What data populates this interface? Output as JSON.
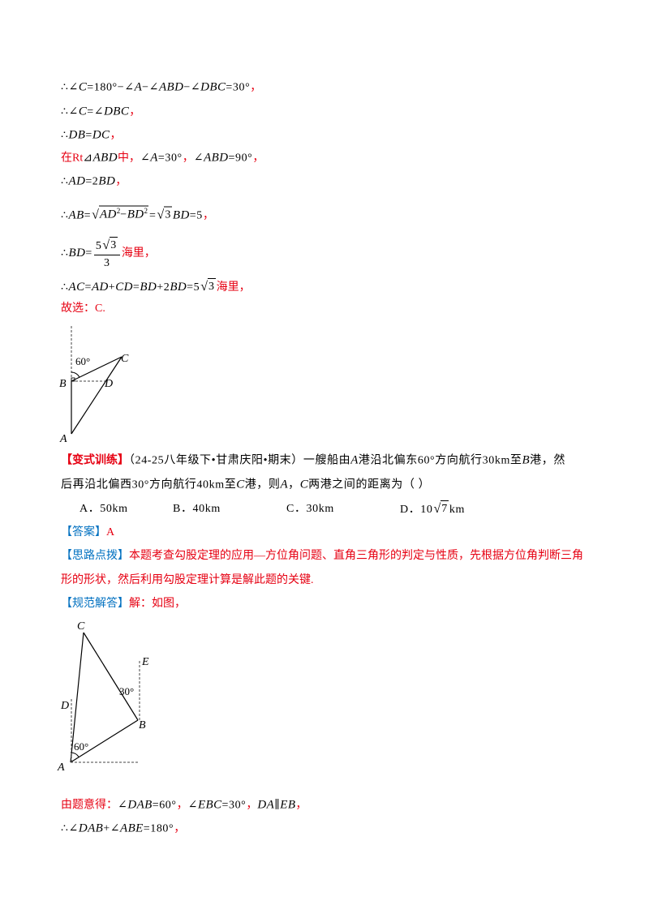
{
  "symbols": {
    "radical": "√"
  },
  "colors": {
    "red": "#e60012",
    "blue": "#0070c0"
  },
  "lines": [
    {
      "segs": [
        {
          "t": "∴∠",
          "s": "n"
        },
        {
          "t": "C",
          "s": "m"
        },
        {
          "t": "=180°−∠",
          "s": "n"
        },
        {
          "t": "A",
          "s": "m"
        },
        {
          "t": "−∠",
          "s": "n"
        },
        {
          "t": "ABD",
          "s": "m"
        },
        {
          "t": "−∠",
          "s": "n"
        },
        {
          "t": "DBC",
          "s": "m"
        },
        {
          "t": "=30°",
          "s": "n"
        },
        {
          "t": "，",
          "s": "r"
        }
      ]
    },
    {
      "segs": [
        {
          "t": "∴∠",
          "s": "n"
        },
        {
          "t": "C",
          "s": "m"
        },
        {
          "t": "=∠",
          "s": "n"
        },
        {
          "t": "DBC",
          "s": "m"
        },
        {
          "t": "，",
          "s": "r"
        }
      ]
    },
    {
      "segs": [
        {
          "t": "∴",
          "s": "n"
        },
        {
          "t": "DB",
          "s": "m"
        },
        {
          "t": "=",
          "s": "n"
        },
        {
          "t": "DC",
          "s": "m"
        },
        {
          "t": "，",
          "s": "r"
        }
      ]
    },
    {
      "segs": [
        {
          "t": "在Rt",
          "s": "r"
        },
        {
          "t": "⊿",
          "s": "n"
        },
        {
          "t": "ABD",
          "s": "m"
        },
        {
          "t": "中，",
          "s": "r"
        },
        {
          "t": "∠",
          "s": "n"
        },
        {
          "t": "A",
          "s": "m"
        },
        {
          "t": "=30°",
          "s": "n"
        },
        {
          "t": "，",
          "s": "r"
        },
        {
          "t": "∠",
          "s": "n"
        },
        {
          "t": "ABD",
          "s": "m"
        },
        {
          "t": "=90°",
          "s": "n"
        },
        {
          "t": "，",
          "s": "r"
        }
      ]
    },
    {
      "segs": [
        {
          "t": "∴",
          "s": "n"
        },
        {
          "t": "AD",
          "s": "m"
        },
        {
          "t": "=2",
          "s": "n"
        },
        {
          "t": "BD",
          "s": "m"
        },
        {
          "t": "，",
          "s": "r"
        }
      ]
    },
    {
      "segs": [
        {
          "t": "∴",
          "s": "n"
        },
        {
          "t": "AB",
          "s": "m"
        },
        {
          "t": "=",
          "s": "n"
        },
        {
          "sqrt": [
            {
              "t": "AD",
              "s": "m"
            },
            {
              "sup": "2"
            },
            {
              "t": "−",
              "s": "n"
            },
            {
              "t": "BD",
              "s": "m"
            },
            {
              "sup": "2"
            }
          ]
        },
        {
          "t": "=",
          "s": "n"
        },
        {
          "sqrt": [
            {
              "t": "3",
              "s": "n"
            }
          ]
        },
        {
          "t": "BD",
          "s": "m"
        },
        {
          "t": "=5",
          "s": "n"
        },
        {
          "t": "，",
          "s": "r"
        }
      ]
    },
    {
      "segs": [
        {
          "t": "∴",
          "s": "n"
        },
        {
          "t": "BD",
          "s": "m"
        },
        {
          "t": "=",
          "s": "n"
        },
        {
          "frac": {
            "num": [
              {
                "t": "5",
                "s": "n"
              },
              {
                "sqrt": [
                  {
                    "t": "3",
                    "s": "n"
                  }
                ]
              }
            ],
            "den": [
              {
                "t": "3",
                "s": "n"
              }
            ]
          }
        },
        {
          "t": "海里，",
          "s": "r"
        }
      ]
    },
    {
      "segs": [
        {
          "t": "∴",
          "s": "n"
        },
        {
          "t": "AC",
          "s": "m"
        },
        {
          "t": "=",
          "s": "n"
        },
        {
          "t": "AD",
          "s": "m"
        },
        {
          "t": "+",
          "s": "n"
        },
        {
          "t": "CD",
          "s": "m"
        },
        {
          "t": "=",
          "s": "n"
        },
        {
          "t": "BD",
          "s": "m"
        },
        {
          "t": "+2",
          "s": "n"
        },
        {
          "t": "BD",
          "s": "m"
        },
        {
          "t": "=5",
          "s": "n"
        },
        {
          "sqrt": [
            {
              "t": "3",
              "s": "n"
            }
          ]
        },
        {
          "t": "海里，",
          "s": "r"
        }
      ]
    },
    {
      "segs": [
        {
          "t": "故选：C.",
          "s": "r"
        }
      ]
    },
    {
      "segs": [
        {
          "t": "【变式训练】",
          "s": "rb"
        },
        {
          "t": "（24-25八年级下•甘肃庆阳•期末）一艘船由",
          "s": "n"
        },
        {
          "t": "A",
          "s": "m"
        },
        {
          "t": "港沿北偏东60°方向航行30km至",
          "s": "n"
        },
        {
          "t": "B",
          "s": "m"
        },
        {
          "t": "港，然",
          "s": "n"
        }
      ]
    },
    {
      "segs": [
        {
          "t": "后再沿北偏西30°方向航行40km至",
          "s": "n"
        },
        {
          "t": "C",
          "s": "m"
        },
        {
          "t": "港，则",
          "s": "n"
        },
        {
          "t": "A",
          "s": "m"
        },
        {
          "t": "，",
          "s": "n"
        },
        {
          "t": "C",
          "s": "m"
        },
        {
          "t": "两港之间的距离为（    ）",
          "s": "n"
        }
      ]
    },
    {
      "segs": [
        {
          "t": "【答案】",
          "s": "bl"
        },
        {
          "t": "A",
          "s": "r"
        }
      ]
    },
    {
      "segs": [
        {
          "t": "【思路点拨】",
          "s": "bl"
        },
        {
          "t": "本题考查勾股定理的应用—方位角问题、直角三角形的判定与性质，先根据方位角判断三角",
          "s": "r"
        }
      ]
    },
    {
      "segs": [
        {
          "t": "形的形状，然后利用勾股定理计算是解此题的关键.",
          "s": "r"
        }
      ]
    },
    {
      "segs": [
        {
          "t": "【规范解答】",
          "s": "bl"
        },
        {
          "t": "解：如图，",
          "s": "r"
        }
      ]
    },
    {
      "segs": [
        {
          "t": "由题意得：",
          "s": "r"
        },
        {
          "t": "∠",
          "s": "n"
        },
        {
          "t": "DAB",
          "s": "m"
        },
        {
          "t": "=60°",
          "s": "n"
        },
        {
          "t": "，",
          "s": "r"
        },
        {
          "t": "∠",
          "s": "n"
        },
        {
          "t": "EBC",
          "s": "m"
        },
        {
          "t": "=30°",
          "s": "n"
        },
        {
          "t": "，",
          "s": "r"
        },
        {
          "t": "DA",
          "s": "m"
        },
        {
          "t": "∥",
          "s": "n"
        },
        {
          "t": "EB",
          "s": "m"
        },
        {
          "t": "，",
          "s": "r"
        }
      ]
    },
    {
      "segs": [
        {
          "t": "∴∠",
          "s": "n"
        },
        {
          "t": "DAB",
          "s": "m"
        },
        {
          "t": "+∠",
          "s": "n"
        },
        {
          "t": "ABE",
          "s": "m"
        },
        {
          "t": "=180°",
          "s": "n"
        },
        {
          "t": "，",
          "s": "r"
        }
      ]
    }
  ],
  "options": [
    {
      "segs": [
        {
          "t": "A．50km",
          "s": "n"
        }
      ]
    },
    {
      "segs": [
        {
          "t": "B．40km",
          "s": "n"
        }
      ]
    },
    {
      "segs": [
        {
          "t": "C．30km",
          "s": "n"
        }
      ]
    },
    {
      "segs": [
        {
          "t": "D．10",
          "s": "n"
        },
        {
          "sqrt": [
            {
              "t": "7",
              "s": "n"
            }
          ]
        },
        {
          "t": "km",
          "s": "n"
        }
      ]
    }
  ],
  "figure1": {
    "labels": {
      "angle": "60°",
      "c": "C",
      "b": "B",
      "d": "D",
      "a": "A"
    }
  },
  "figure2": {
    "labels": {
      "c": "C",
      "e": "E",
      "angle_b": "30°",
      "d": "D",
      "b": "B",
      "angle_a": "60°",
      "a": "A"
    }
  }
}
